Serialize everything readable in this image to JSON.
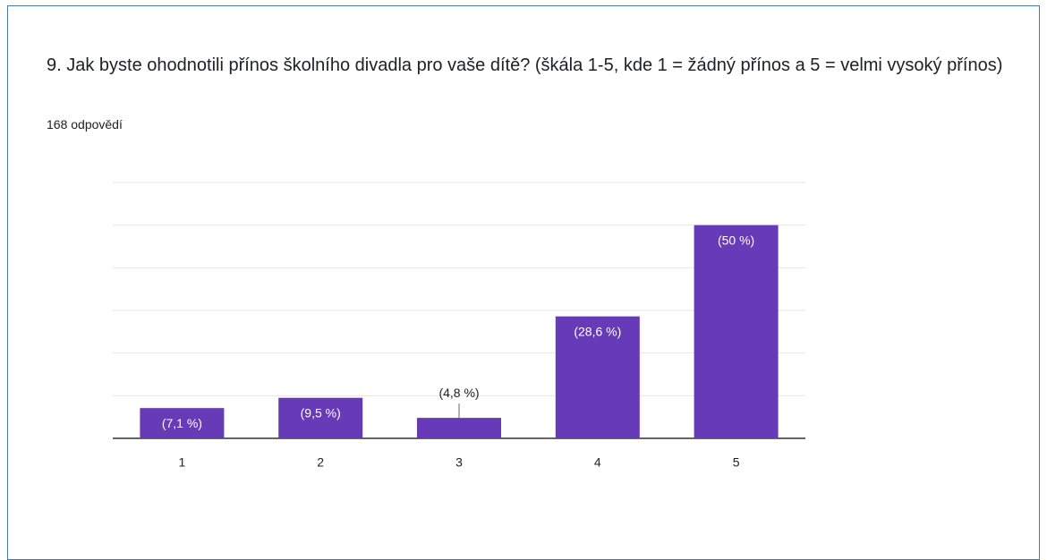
{
  "chart_data": {
    "type": "bar",
    "title": "9.      Jak byste ohodnotili přínos školního divadla pro vaše dítě? (škála 1-5, kde 1 = žádný přínos a 5 = velmi vysoký přínos)",
    "subtitle": "168 odpovědí",
    "categories": [
      "1",
      "2",
      "3",
      "4",
      "5"
    ],
    "values": [
      7.1,
      9.5,
      4.8,
      28.6,
      50
    ],
    "value_labels": [
      "(7,1 %)",
      "(9,5 %)",
      "(4,8 %)",
      "(28,6 %)",
      "(50 %)"
    ],
    "color": "#673ab7",
    "ylim": [
      0,
      60
    ],
    "yticks": [
      0,
      10,
      20,
      30,
      40,
      50,
      60
    ],
    "grid": true
  }
}
